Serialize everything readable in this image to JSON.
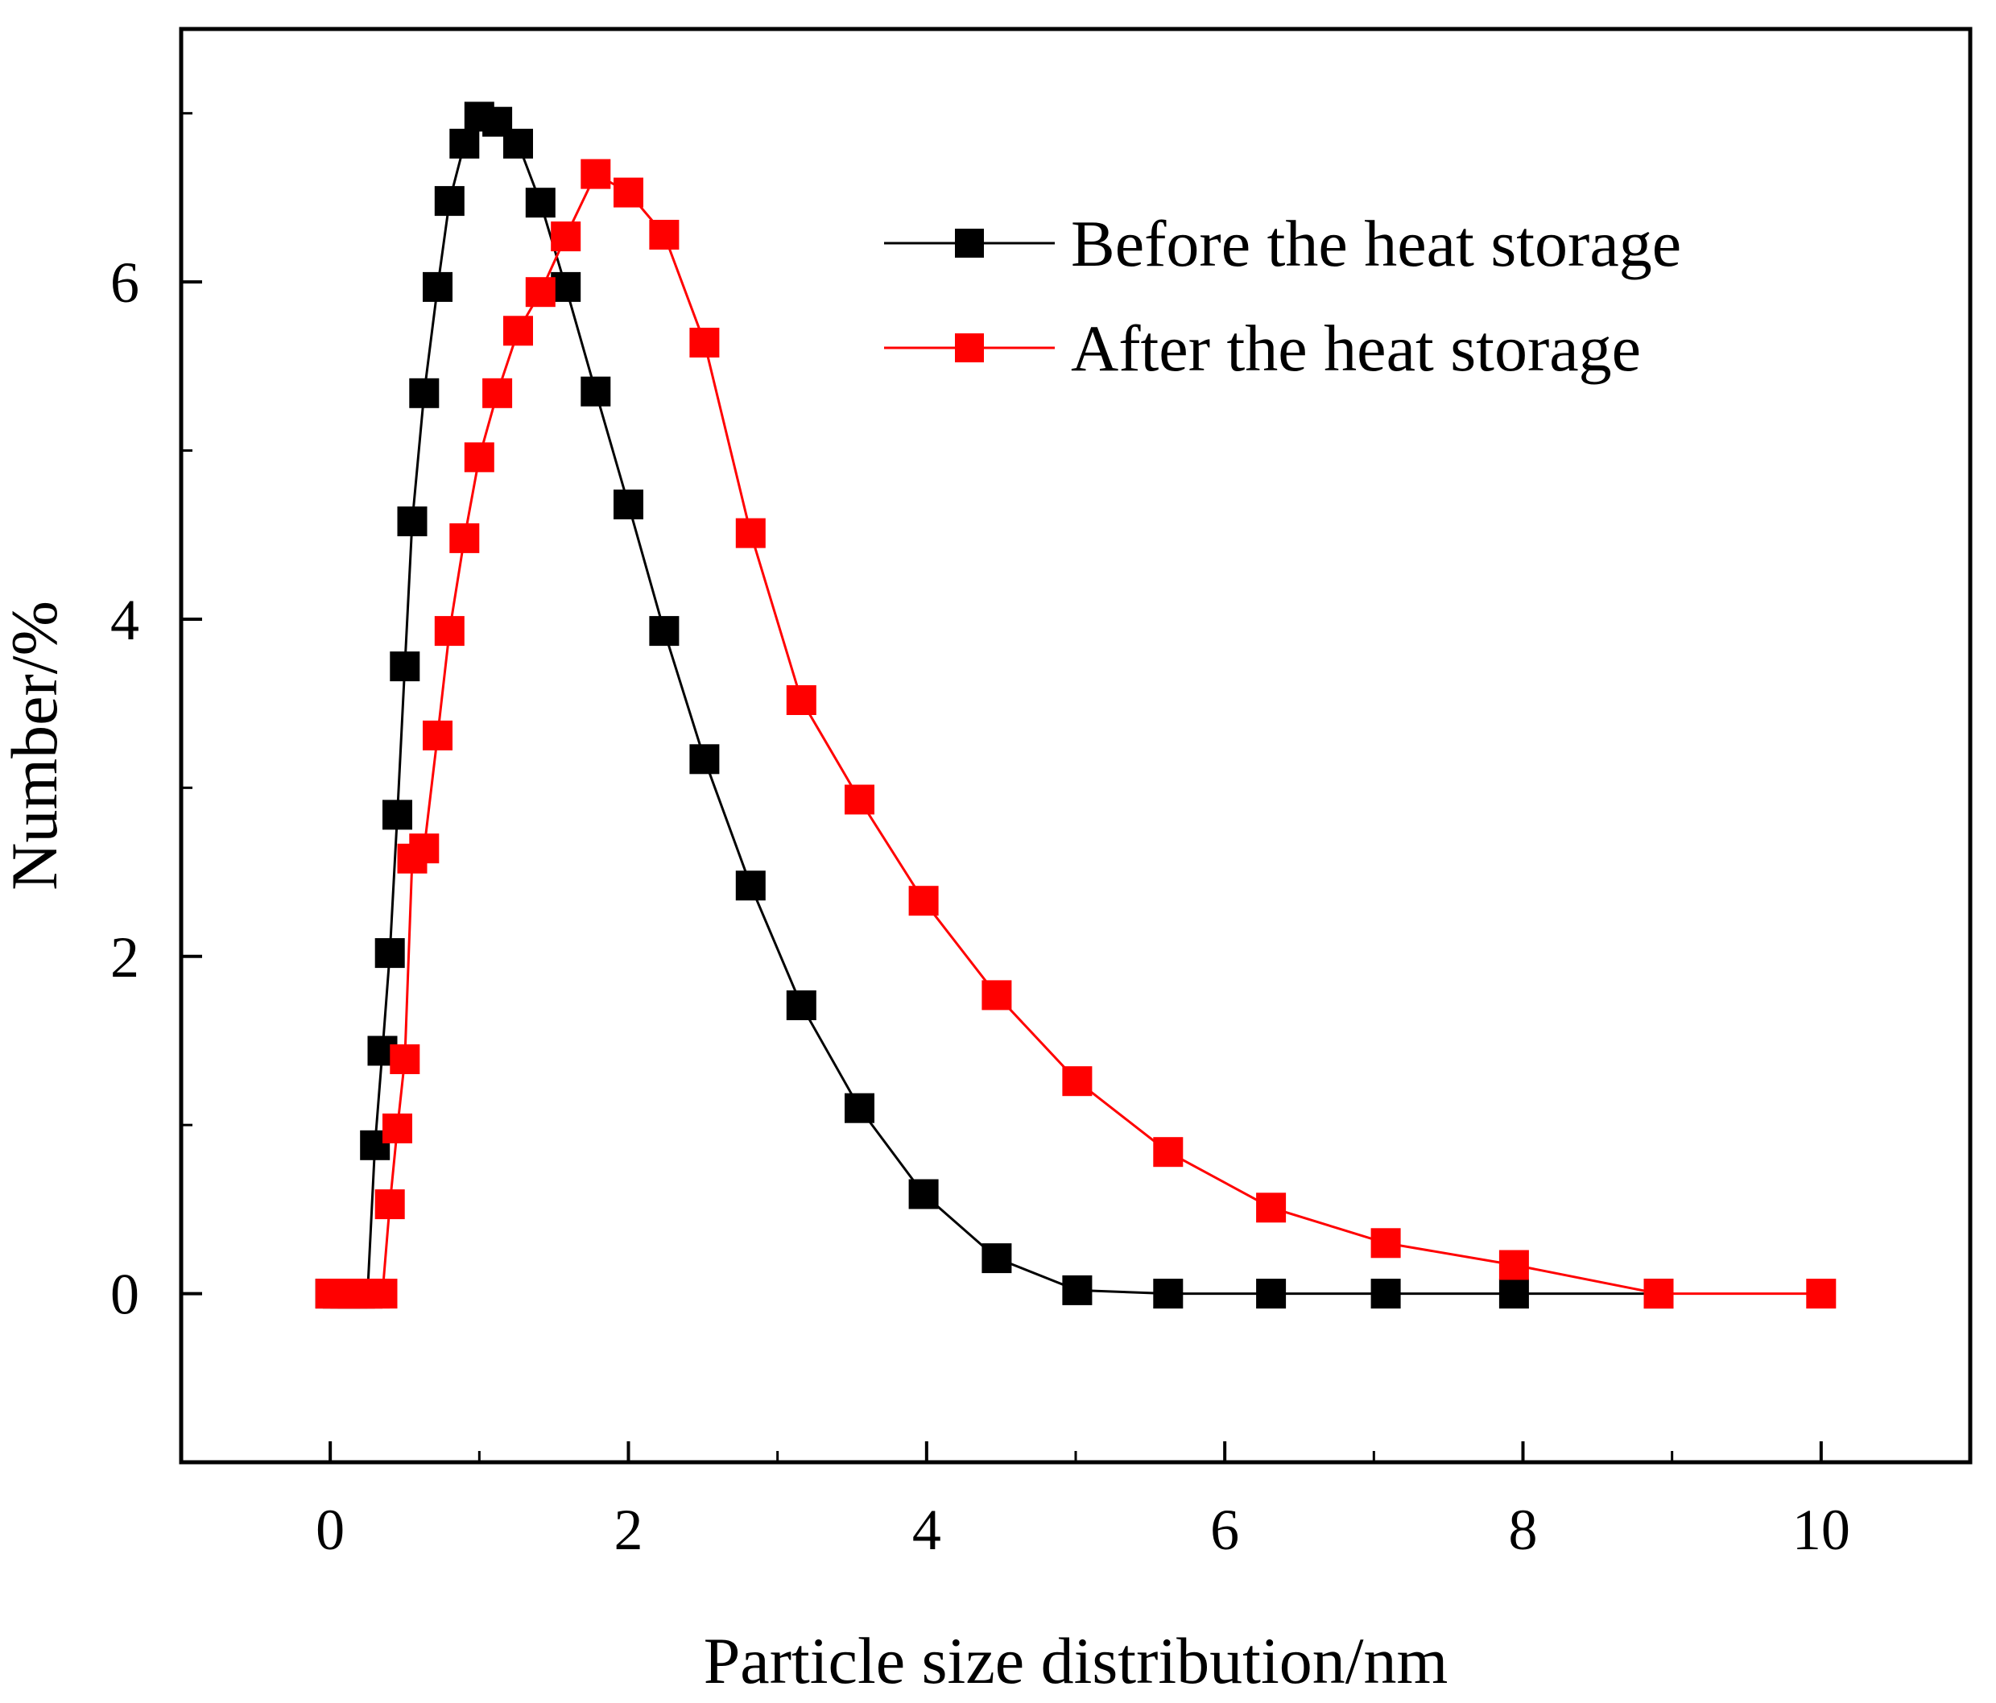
{
  "chart_data": {
    "type": "line",
    "title": "",
    "xlabel": "Particle size distribution/nm",
    "ylabel": "Number/%",
    "xlim": [
      -1,
      11
    ],
    "ylim": [
      -1,
      7.5
    ],
    "xticks": [
      0,
      2,
      4,
      6,
      8,
      10
    ],
    "yticks": [
      0,
      2,
      4,
      6
    ],
    "xtick_labels": [
      "0",
      "2",
      "4",
      "6",
      "8",
      "10"
    ],
    "ytick_labels": [
      "0",
      "2",
      "4",
      "6"
    ],
    "legend_position": "top-right",
    "series": [
      {
        "name": "Before the heat storage",
        "color": "#000000",
        "marker": "square",
        "x": [
          0,
          0.05,
          0.1,
          0.15,
          0.2,
          0.25,
          0.3,
          0.35,
          0.4,
          0.45,
          0.5,
          0.55,
          0.63,
          0.72,
          0.8,
          0.9,
          1.0,
          1.12,
          1.26,
          1.41,
          1.58,
          1.78,
          2.0,
          2.24,
          2.51,
          2.82,
          3.16,
          3.55,
          3.98,
          4.47,
          5.01,
          5.62,
          6.31,
          7.08,
          7.94,
          8.91
        ],
        "y": [
          0,
          0,
          0,
          0,
          0,
          0,
          0.88,
          1.44,
          2.02,
          2.84,
          3.72,
          4.58,
          5.34,
          5.97,
          6.48,
          6.82,
          6.98,
          6.95,
          6.82,
          6.47,
          5.97,
          5.35,
          4.68,
          3.93,
          3.17,
          2.42,
          1.71,
          1.1,
          0.59,
          0.21,
          0.02,
          0,
          0,
          0,
          0,
          0
        ]
      },
      {
        "name": "After the heat storage",
        "color": "#ff0000",
        "marker": "square",
        "x": [
          0,
          0.05,
          0.1,
          0.15,
          0.2,
          0.25,
          0.3,
          0.35,
          0.4,
          0.45,
          0.5,
          0.55,
          0.63,
          0.72,
          0.8,
          0.9,
          1.0,
          1.12,
          1.26,
          1.41,
          1.58,
          1.78,
          2.0,
          2.24,
          2.51,
          2.82,
          3.16,
          3.55,
          3.98,
          4.47,
          5.01,
          5.62,
          6.31,
          7.08,
          7.94,
          8.91,
          10.0
        ],
        "y": [
          0,
          0,
          0,
          0,
          0,
          0,
          0,
          0,
          0.53,
          0.98,
          1.39,
          2.58,
          2.64,
          3.31,
          3.93,
          4.48,
          4.96,
          5.34,
          5.71,
          5.94,
          6.27,
          6.64,
          6.53,
          6.28,
          5.64,
          4.51,
          3.52,
          2.93,
          2.33,
          1.77,
          1.26,
          0.84,
          0.51,
          0.3,
          0.17,
          0,
          0
        ]
      }
    ]
  }
}
